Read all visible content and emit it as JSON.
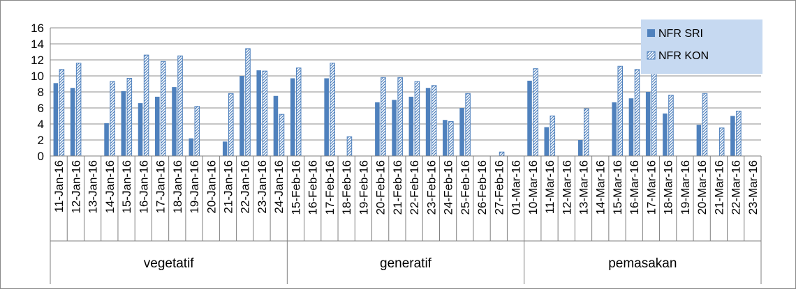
{
  "chart_data": {
    "type": "bar",
    "title": "",
    "xlabel": "",
    "ylabel": "",
    "ylim": [
      0,
      16
    ],
    "y_ticks": [
      "0",
      "2",
      "4",
      "6",
      "8",
      "10",
      "12",
      "14",
      "16"
    ],
    "grid": true,
    "legend_position": "top-right",
    "categories": [
      "11-Jan-16",
      "12-Jan-16",
      "13-Jan-16",
      "14-Jan-16",
      "15-Jan-16",
      "16-Jan-16",
      "17-Jan-16",
      "18-Jan-16",
      "19-Jan-16",
      "20-Jan-16",
      "21-Jan-16",
      "22-Jan-16",
      "23-Jan-16",
      "24-Jan-16",
      "15-Feb-16",
      "16-Feb-16",
      "17-Feb-16",
      "18-Feb-16",
      "19-Feb-16",
      "20-Feb-16",
      "21-Feb-16",
      "22-Feb-16",
      "23-Feb-16",
      "24-Feb-16",
      "25-Feb-16",
      "26-Feb-16",
      "27-Feb-16",
      "01-Mar-16",
      "10-Mar-16",
      "11-Mar-16",
      "12-Mar-16",
      "13-Mar-16",
      "14-Mar-16",
      "15-Mar-16",
      "16-Mar-16",
      "17-Mar-16",
      "18-Mar-16",
      "19-Mar-16",
      "20-Mar-16",
      "21-Mar-16",
      "22-Mar-16",
      "23-Mar-16"
    ],
    "groups": [
      {
        "label": "vegetatif",
        "start": 0,
        "count": 14
      },
      {
        "label": "generatif",
        "start": 14,
        "count": 14
      },
      {
        "label": "pemasakan",
        "start": 28,
        "count": 14
      }
    ],
    "series": [
      {
        "name": "NFR SRI",
        "color": "#4f81bd",
        "pattern": "solid",
        "values": [
          9.1,
          8.5,
          0,
          4.1,
          8.1,
          6.6,
          7.4,
          8.6,
          2.2,
          0,
          1.8,
          10.0,
          10.7,
          7.5,
          9.7,
          0,
          9.7,
          0,
          0,
          6.7,
          7.0,
          7.4,
          8.5,
          4.5,
          6.0,
          0,
          0,
          0,
          9.4,
          3.6,
          0,
          2.0,
          0,
          6.7,
          7.2,
          8.0,
          5.3,
          0,
          3.9,
          0,
          5.0,
          0
        ]
      },
      {
        "name": "NFR KON",
        "color": "#4f81bd",
        "pattern": "diagonal-hatch",
        "values": [
          10.8,
          11.6,
          0,
          9.3,
          9.7,
          12.6,
          11.8,
          12.5,
          6.2,
          0,
          7.8,
          13.4,
          10.6,
          5.2,
          11.0,
          0,
          11.6,
          2.4,
          0,
          9.8,
          9.8,
          9.3,
          8.8,
          4.3,
          7.8,
          0,
          0.5,
          0,
          10.9,
          5.0,
          0,
          5.9,
          0,
          11.2,
          10.8,
          10.9,
          7.6,
          0,
          7.8,
          3.5,
          5.6,
          0
        ]
      }
    ]
  }
}
